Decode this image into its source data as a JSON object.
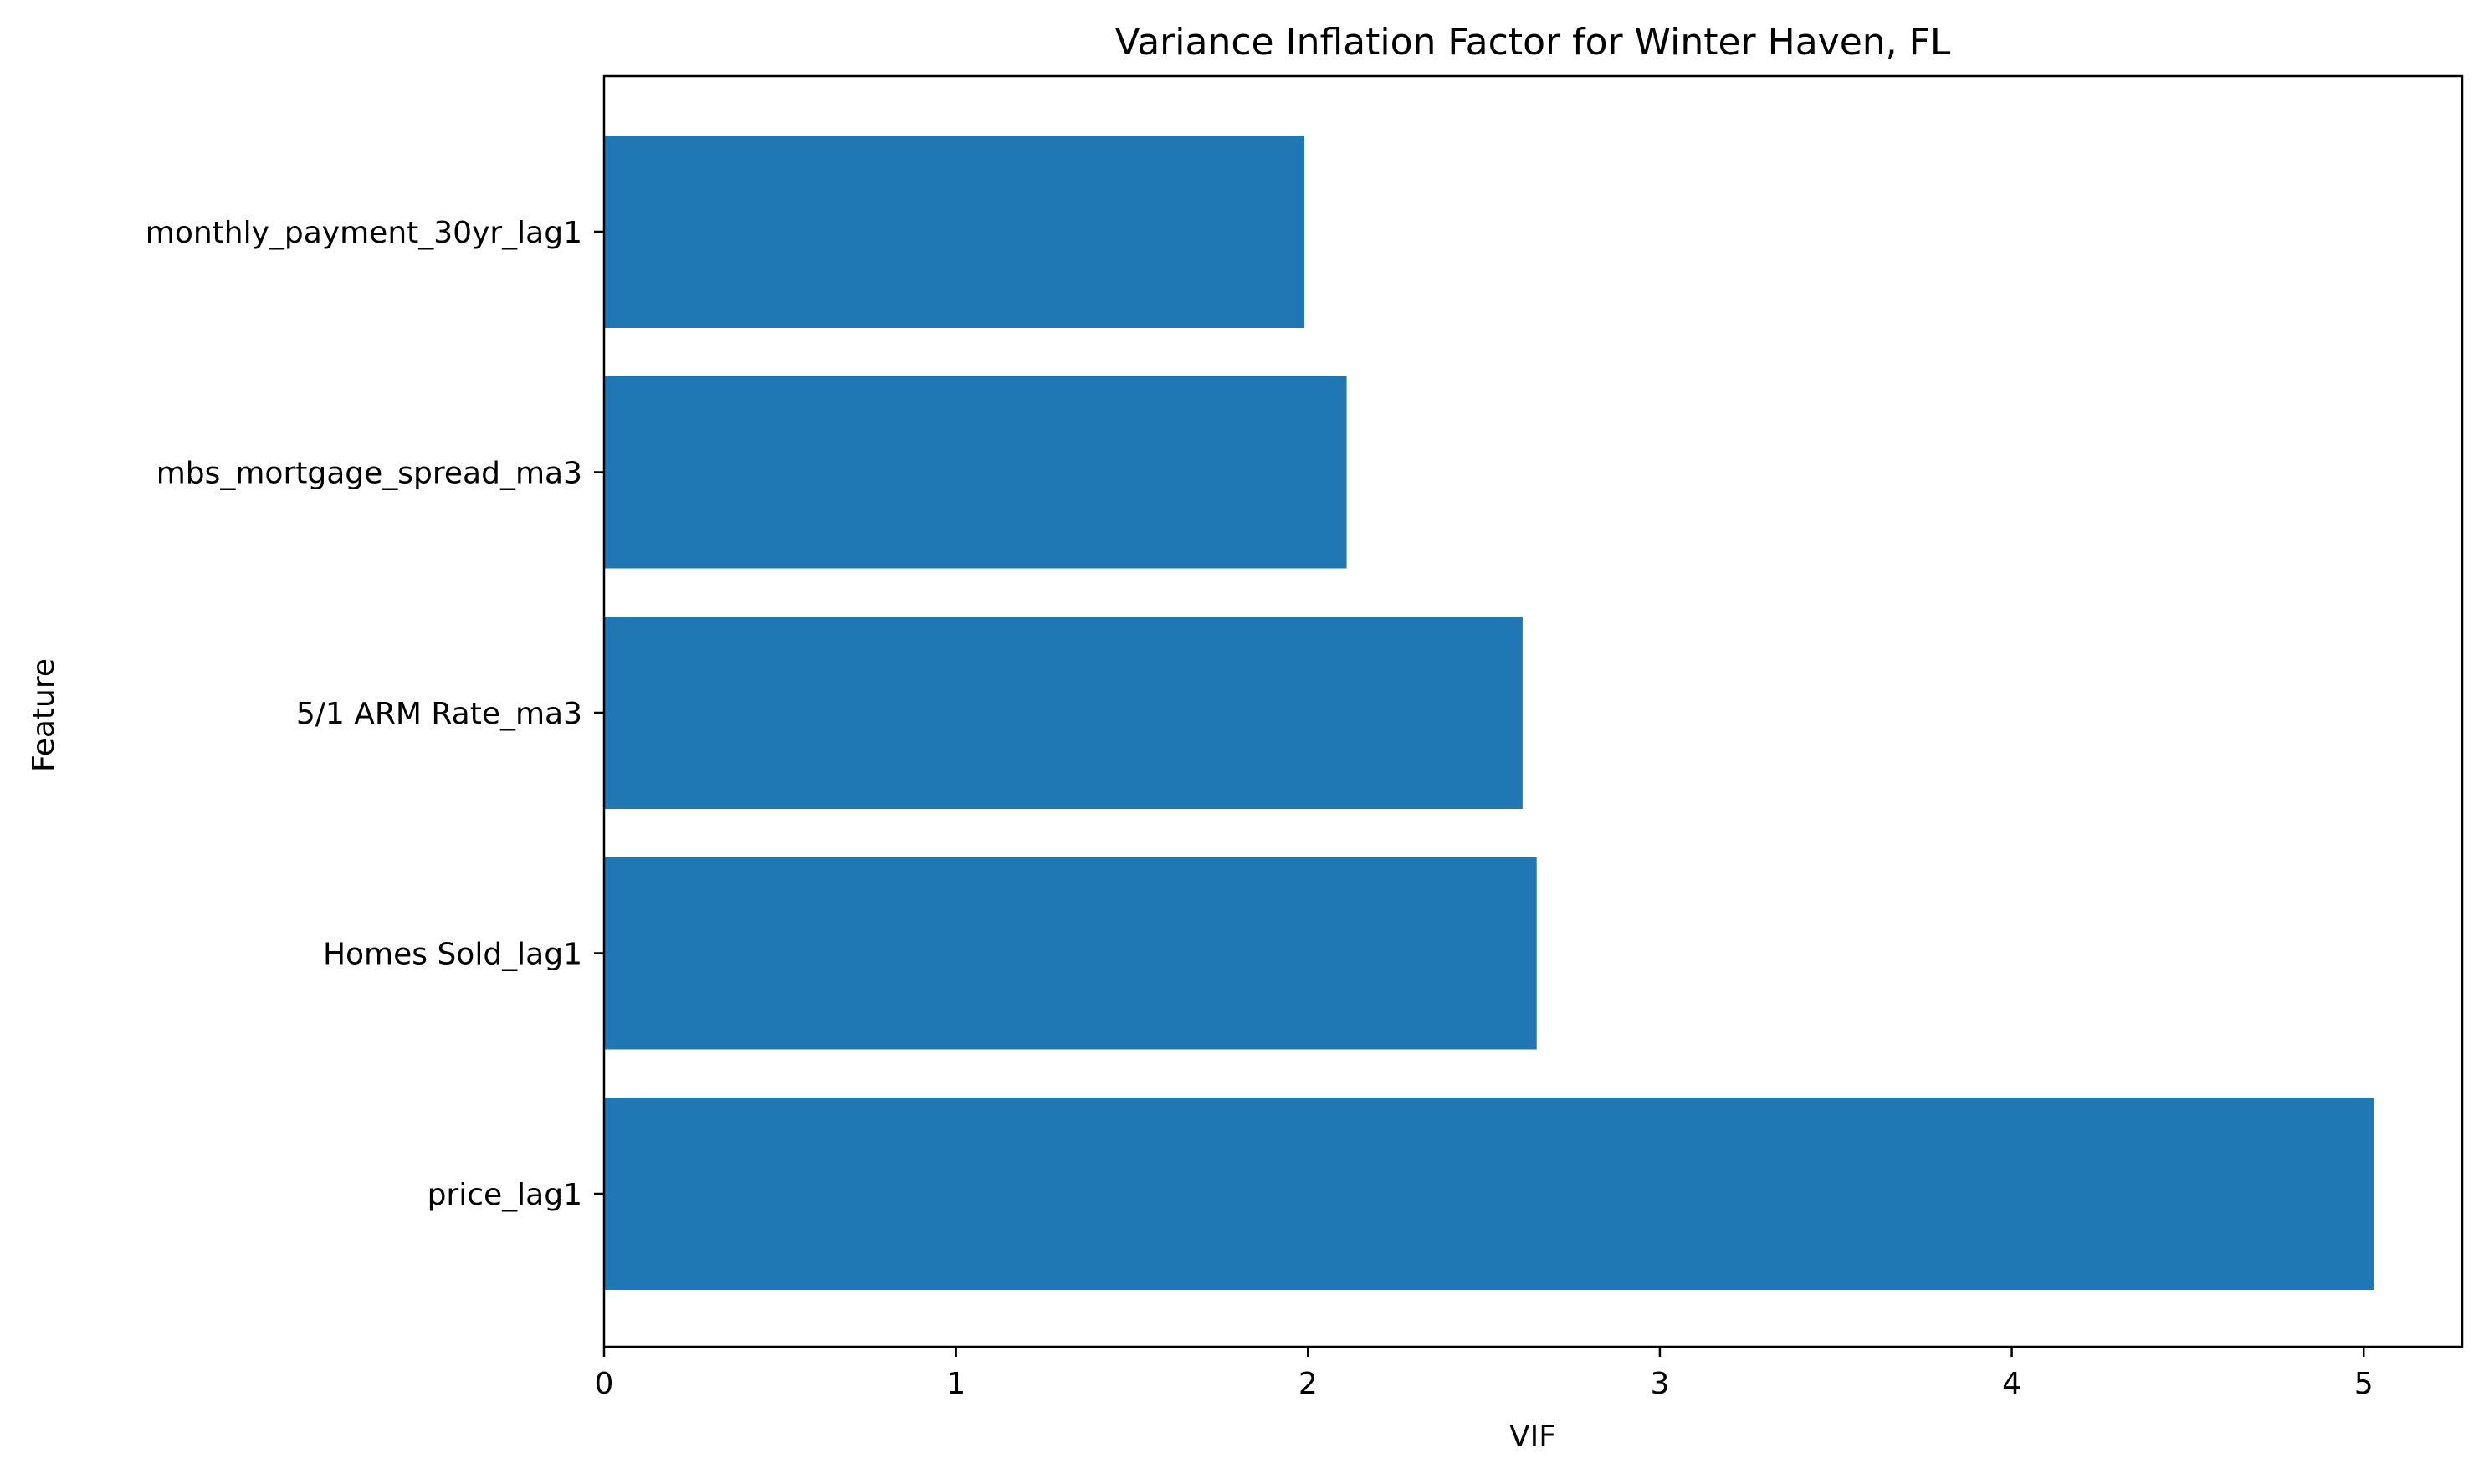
{
  "chart_data": {
    "type": "bar",
    "orientation": "horizontal",
    "title": "Variance Inflation Factor for Winter Haven, FL",
    "xlabel": "VIF",
    "ylabel": "Feature",
    "categories": [
      "monthly_payment_30yr_lag1",
      "mbs_mortgage_spread_ma3",
      "5/1 ARM Rate_ma3",
      "Homes Sold_lag1",
      "price_lag1"
    ],
    "values": [
      1.99,
      2.11,
      2.61,
      2.65,
      5.03
    ],
    "xlim": [
      0,
      5.28
    ],
    "xticks": [
      "0",
      "1",
      "2",
      "3",
      "4",
      "5"
    ],
    "grid": false,
    "bar_color": "#1f77b4"
  }
}
